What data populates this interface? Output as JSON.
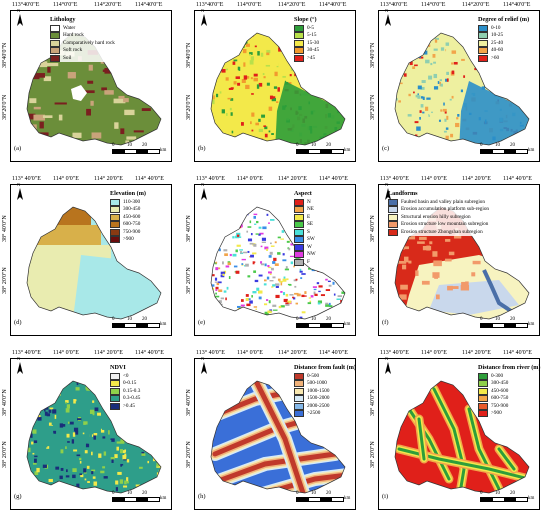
{
  "panels": [
    {
      "id": "a",
      "label": "(a)",
      "title": "Lithology",
      "lon_ticks": [
        "113°40'0\"E",
        "114°0'0\"E",
        "114°20'0\"E",
        "114°40'0\"E"
      ],
      "lat_ticks": [
        "38°40'0\"N",
        "38°20'0\"N"
      ],
      "legend": [
        {
          "label": "Water",
          "color": "#ffffff"
        },
        {
          "label": "Hard rock",
          "color": "#6b8e3a"
        },
        {
          "label": "Comparatively hard rock",
          "color": "#d9d39a"
        },
        {
          "label": "Soft rock",
          "color": "#c9a37a"
        },
        {
          "label": "Soil",
          "color": "#7a1f1f"
        }
      ],
      "scale": {
        "ticks": [
          "0",
          "10",
          "20"
        ],
        "unit": "km"
      }
    },
    {
      "id": "b",
      "label": "(b)",
      "title": "Slope (°)",
      "lon_ticks": [
        "113°40'0\"E",
        "114°0'0\"E",
        "114°20'0\"E",
        "114°40'0\"E"
      ],
      "lat_ticks": [
        "38°40'0\"N",
        "38°20'0\"N"
      ],
      "legend": [
        {
          "label": "0-5",
          "color": "#2e9e3a"
        },
        {
          "label": "5-15",
          "color": "#b8e04a"
        },
        {
          "label": "15-30",
          "color": "#f3e94a"
        },
        {
          "label": "30-45",
          "color": "#f29a2e"
        },
        {
          "label": ">45",
          "color": "#e0201a"
        }
      ],
      "scale": {
        "ticks": [
          "0",
          "10",
          "20"
        ],
        "unit": "km"
      }
    },
    {
      "id": "c",
      "label": "(c)",
      "title": "Degree of relief (m)",
      "lon_ticks": [
        "113°40'0\"E",
        "114°0'0\"E",
        "114°20'0\"E",
        "114°40'0\"E"
      ],
      "lat_ticks": [
        "38°40'0\"N",
        "38°20'0\"N"
      ],
      "legend": [
        {
          "label": "0-10",
          "color": "#2b8fc9"
        },
        {
          "label": "10-25",
          "color": "#8fcfb0"
        },
        {
          "label": "25-40",
          "color": "#eef0a0"
        },
        {
          "label": "40-60",
          "color": "#f2a54a"
        },
        {
          "label": ">60",
          "color": "#e0201a"
        }
      ],
      "scale": {
        "ticks": [
          "0",
          "10",
          "20"
        ],
        "unit": "km"
      }
    },
    {
      "id": "d",
      "label": "(d)",
      "title": "Elevation (m)",
      "lon_ticks": [
        "113° 40'0\"E",
        "114° 0'0\"E",
        "114° 20'0\"E",
        "114° 40'0\"E"
      ],
      "lat_ticks": [
        "38° 40'0\"N",
        "38° 20'0\"N"
      ],
      "legend": [
        {
          "label": "110-300",
          "color": "#a8e8e8"
        },
        {
          "label": "300-450",
          "color": "#e9ecb0"
        },
        {
          "label": "450-600",
          "color": "#d8b04a"
        },
        {
          "label": "600-750",
          "color": "#b8741e"
        },
        {
          "label": "750-900",
          "color": "#8a3a12"
        },
        {
          "label": ">900",
          "color": "#6a0d0d"
        }
      ],
      "scale": {
        "ticks": [
          "0",
          "10",
          "20"
        ],
        "unit": "km"
      }
    },
    {
      "id": "e",
      "label": "(e)",
      "title": "Aspect",
      "lon_ticks": [
        "113° 40'0\"E",
        "114° 0'0\"E",
        "114° 20'0\"E",
        "114° 40'0\"E"
      ],
      "lat_ticks": [
        "38° 40'0\"N",
        "38° 20'0\"N"
      ],
      "legend": [
        {
          "label": "N",
          "color": "#e0201a"
        },
        {
          "label": "NE",
          "color": "#f2a54a"
        },
        {
          "label": "E",
          "color": "#f3e94a"
        },
        {
          "label": "SE",
          "color": "#4ac94a"
        },
        {
          "label": "S",
          "color": "#4ae0d8"
        },
        {
          "label": "SW",
          "color": "#3a8ee8"
        },
        {
          "label": "W",
          "color": "#3a3ae0"
        },
        {
          "label": "NW",
          "color": "#e03ae0"
        },
        {
          "label": "F",
          "color": "#b0b0b0"
        }
      ],
      "scale": {
        "ticks": [
          "0",
          "10",
          "20"
        ],
        "unit": "km"
      }
    },
    {
      "id": "f",
      "label": "(f)",
      "title": "Landforms",
      "lon_ticks": [
        "113° 40'0\"E",
        "114° 0'0\"E",
        "114° 20'0\"E",
        "114° 40'0\"E"
      ],
      "lat_ticks": [
        "38° 40'0\"N",
        "38° 20'0\"N"
      ],
      "legend": [
        {
          "label": "Faulted basin and valley plain subregion",
          "color": "#4a6fa8"
        },
        {
          "label": "Erosion accumulation platform sub-region",
          "color": "#c9d8ec"
        },
        {
          "label": "Structural erosion hilly subregion",
          "color": "#f7f3c0"
        },
        {
          "label": "Erosion structure low mountain subregion",
          "color": "#f29a6a"
        },
        {
          "label": "Erosion structure Zhongshan subregion",
          "color": "#d82a1a"
        }
      ],
      "scale": {
        "ticks": [
          "0",
          "10",
          "20"
        ],
        "unit": "km"
      }
    },
    {
      "id": "g",
      "label": "(g)",
      "title": "NDVI",
      "lon_ticks": [
        "113° 40'0\"E",
        "114° 0'0\"E",
        "114° 20'0\"E",
        "114° 40'0\"E"
      ],
      "lat_ticks": [
        "38° 40'0\"N",
        "38° 20'0\"N"
      ],
      "legend": [
        {
          "label": "<0",
          "color": "#f0f0f0"
        },
        {
          "label": "0-0.15",
          "color": "#f3e94a"
        },
        {
          "label": "0.15-0.3",
          "color": "#8fd04a"
        },
        {
          "label": "0.3-0.45",
          "color": "#2e9e8a"
        },
        {
          "label": ">0.45",
          "color": "#1a2e7a"
        }
      ],
      "scale": {
        "ticks": [
          "0",
          "10",
          "20"
        ],
        "unit": "km"
      }
    },
    {
      "id": "h",
      "label": "(h)",
      "title": "Distance from  fault (m)",
      "lon_ticks": [
        "113° 40'0\"E",
        "114° 0'0\"E",
        "114° 20'0\"E",
        "114° 40'0\"E"
      ],
      "lat_ticks": [
        "38° 40'0\"N",
        "38° 20'0\"N"
      ],
      "legend": [
        {
          "label": "0-500",
          "color": "#c0392b"
        },
        {
          "label": "500-1000",
          "color": "#f0b27a"
        },
        {
          "label": "1000-1500",
          "color": "#f7e7b0"
        },
        {
          "label": "1500-2000",
          "color": "#d6eaf8"
        },
        {
          "label": "2000-2500",
          "color": "#85b8e8"
        },
        {
          "label": ">2500",
          "color": "#3a6fd8"
        }
      ],
      "scale": {
        "ticks": [
          "0",
          "10",
          "20"
        ],
        "unit": "km"
      }
    },
    {
      "id": "i",
      "label": "(i)",
      "title": "Distance from river (m)",
      "lon_ticks": [
        "113° 40'0\"E",
        "114° 0'0\"E",
        "114° 20'0\"E",
        "114° 40'0\"E"
      ],
      "lat_ticks": [
        "38° 40'0\"N",
        "38° 20'0\"N"
      ],
      "legend": [
        {
          "label": "0-300",
          "color": "#2e9e3a"
        },
        {
          "label": "300-450",
          "color": "#8fd04a"
        },
        {
          "label": "450-600",
          "color": "#f3e94a"
        },
        {
          "label": "600-750",
          "color": "#f2a54a"
        },
        {
          "label": "750-900",
          "color": "#e85a2a"
        },
        {
          "label": ">900",
          "color": "#e0201a"
        }
      ],
      "scale": {
        "ticks": [
          "0",
          "10",
          "20"
        ],
        "unit": "km"
      }
    }
  ],
  "north_label": "N"
}
